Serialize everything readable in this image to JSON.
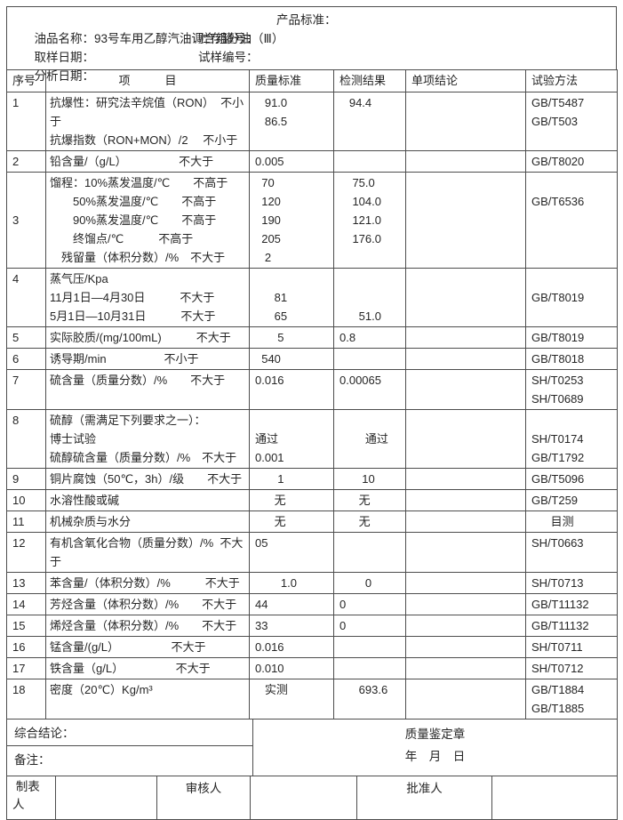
{
  "info": {
    "line1_left": "油品名称：93号车用乙醇汽油调合组分油（Ⅲ）",
    "line1_right": "产品标准：",
    "line2_left": "取样日期：",
    "line2_right": "贮存罐号：",
    "line3_left": "分析日期：",
    "line3_right": "试样编号："
  },
  "table": {
    "headers": [
      "序号",
      "项　　　目",
      "质量标准",
      "检测结果",
      "单项结论",
      "试验方法"
    ],
    "rows": [
      {
        "no": "1",
        "item": [
          "抗爆性：研究法辛烷值（RON）  不小",
          "于",
          "抗爆指数（RON+MON）/2　 不小于"
        ],
        "std": [
          "   91.0",
          "   86.5"
        ],
        "res": [
          "   94.4"
        ],
        "concl": [],
        "method": [
          "GB/T5487",
          "GB/T503"
        ]
      },
      {
        "no": "2",
        "item": [
          "铅含量/（g/L）　　　　　不大于"
        ],
        "std": [
          "0.005"
        ],
        "res": [],
        "concl": [],
        "method": [
          "GB/T8020"
        ]
      },
      {
        "no": "3",
        "vc": true,
        "item": [
          "馏程：10%蒸发温度/℃　　不高于",
          "　　50%蒸发温度/℃　　不高于",
          "　　90%蒸发温度/℃　　不高于",
          "　　终馏点/℃　　　不高于",
          "　残留量（体积分数）/%　不大于"
        ],
        "std": [
          "  70",
          "  120",
          "  190",
          "  205",
          "   2"
        ],
        "res": [
          "    75.0",
          "    104.0",
          "    121.0",
          "    176.0"
        ],
        "concl": [],
        "method": [
          "",
          "GB/T6536"
        ]
      },
      {
        "no": "4",
        "item": [
          "蒸气压/Kpa",
          "11月1日—4月30日　　　不大于",
          "5月1日—10月31日　　　不大于"
        ],
        "std": [
          "",
          "      81",
          "      65"
        ],
        "res": [
          "",
          "",
          "      51.0"
        ],
        "concl": [],
        "method": [
          "",
          "GB/T8019"
        ]
      },
      {
        "no": "5",
        "item": [
          "实际胶质/(mg/100mL)　　　不大于"
        ],
        "std": [
          "       5"
        ],
        "res": [
          "0.8"
        ],
        "concl": [],
        "method": [
          "GB/T8019"
        ]
      },
      {
        "no": "6",
        "item": [
          "诱导期/min　　　　　不小于"
        ],
        "std": [
          "  540"
        ],
        "res": [],
        "concl": [],
        "method": [
          "GB/T8018"
        ]
      },
      {
        "no": "7",
        "item": [
          "硫含量（质量分数）/%　　不大于"
        ],
        "std": [
          "0.016"
        ],
        "res": [
          "0.00065"
        ],
        "concl": [],
        "method": [
          "SH/T0253",
          "SH/T0689"
        ]
      },
      {
        "no": "8",
        "item": [
          "硫醇（需满足下列要求之一）：",
          "博士试验",
          "硫醇硫含量（质量分数）/%　不大于"
        ],
        "std": [
          "",
          "通过",
          "0.001"
        ],
        "res": [
          "",
          "        通过"
        ],
        "concl": [],
        "method": [
          "",
          "SH/T0174",
          "GB/T1792"
        ]
      },
      {
        "no": "9",
        "item": [
          "铜片腐蚀（50℃，3h）/级　　不大于"
        ],
        "std": [
          "       1"
        ],
        "res": [
          "       10"
        ],
        "concl": [],
        "method": [
          "GB/T5096"
        ]
      },
      {
        "no": "10",
        "item": [
          "水溶性酸或碱"
        ],
        "std": [
          "      无"
        ],
        "res": [
          "      无"
        ],
        "concl": [],
        "method": [
          "GB/T259"
        ]
      },
      {
        "no": "11",
        "item": [
          "机械杂质与水分"
        ],
        "std": [
          "      无"
        ],
        "res": [
          "      无"
        ],
        "concl": [],
        "method": [
          "      目测"
        ]
      },
      {
        "no": "12",
        "item": [
          "有机含氧化合物（质量分数）/%  不大",
          "于"
        ],
        "std": [
          "05"
        ],
        "res": [],
        "concl": [],
        "method": [
          "SH/T0663"
        ]
      },
      {
        "no": "13",
        "item": [
          "苯含量/（体积分数）/%　　　不大于"
        ],
        "std": [
          "        1.0"
        ],
        "res": [
          "        0"
        ],
        "concl": [],
        "method": [
          "SH/T0713"
        ]
      },
      {
        "no": "14",
        "item": [
          "芳烃含量（体积分数）/%　　不大于"
        ],
        "std": [
          "44"
        ],
        "res": [
          "0"
        ],
        "concl": [],
        "method": [
          "GB/T11132"
        ]
      },
      {
        "no": "15",
        "item": [
          "烯烃含量（体积分数）/%　　不大于"
        ],
        "std": [
          "33"
        ],
        "res": [
          "0"
        ],
        "concl": [],
        "method": [
          "GB/T11132"
        ]
      },
      {
        "no": "16",
        "item": [
          "锰含量/(g/L）　　　　　不大于"
        ],
        "std": [
          "0.016"
        ],
        "res": [],
        "concl": [],
        "method": [
          "SH/T0711"
        ]
      },
      {
        "no": "17",
        "item": [
          "铁含量（g/L）　　　　　不大于"
        ],
        "std": [
          "0.010"
        ],
        "res": [],
        "concl": [],
        "method": [
          "SH/T0712"
        ]
      },
      {
        "no": "18",
        "item": [
          "密度（20℃）Kg/m³"
        ],
        "std": [
          "   实测"
        ],
        "res": [
          "      693.6"
        ],
        "concl": [],
        "method": [
          "GB/T1884",
          "GB/T1885"
        ]
      }
    ]
  },
  "footer": {
    "conclusion_label": "综合结论：",
    "remark_label": "备注：",
    "seal_line1": "质量鉴定章",
    "seal_line2": "年　月　日",
    "maker_label": " 制表人",
    "reviewer_label": "审核人",
    "approver_label": "批准人"
  },
  "colors": {
    "border": "#4d4d4d",
    "text": "#262626",
    "background": "#ffffff"
  }
}
